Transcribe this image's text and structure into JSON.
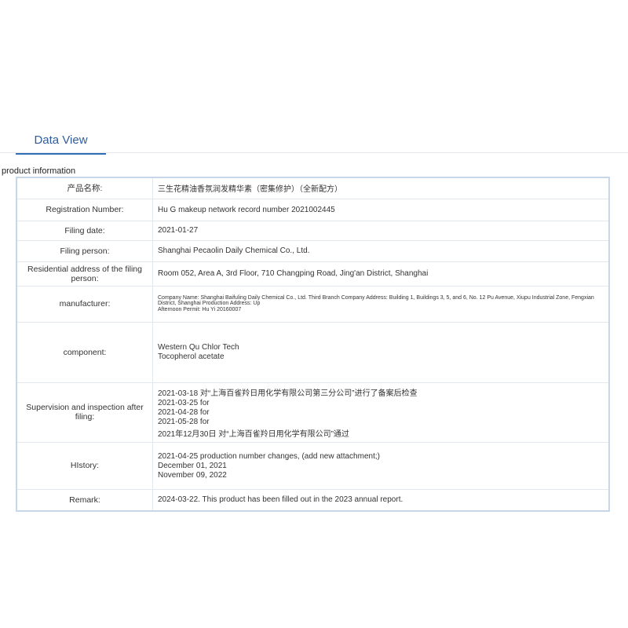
{
  "tab": "Data View",
  "section_title": "product information",
  "rows": [
    {
      "label": "产品名称:",
      "values": [
        "三生花精油香氛润发精华素（密集修护）（全新配方）"
      ]
    },
    {
      "label": "Registration Number:",
      "values": [
        "Hu G makeup network record number 2021002445"
      ]
    },
    {
      "label": "Filing date:",
      "values": [
        "2021-01-27"
      ]
    },
    {
      "label": "Filing person:",
      "values": [
        "Shanghai Pecaolin Daily Chemical Co., Ltd."
      ]
    },
    {
      "label": "Residential address of the filing person:",
      "values": [
        "Room 052, Area A, 3rd Floor, 710 Changping Road, Jing'an District, Shanghai"
      ]
    },
    {
      "label": "manufacturer:",
      "values": [
        "Company Name: Shanghai Baifuling Daily Chemical Co., Ltd. Third Branch Company Address: Building 1, Buildings 3, 5, and 6, No. 12 Pu Avenue, Xiupu Industrial Zone, Fengxian District, Shanghai Production Address: Up",
        "Afternoon Permit: Hu Yi 20160007"
      ]
    },
    {
      "label": "component:",
      "values": [
        "Western Qu Chlor Tech",
        "Tocopherol acetate"
      ]
    },
    {
      "label": "Supervision and inspection after filing:",
      "values": [
        "2021-03-18 对“上海百雀羚日用化学有限公司第三分公司”进行了备案后检查",
        "2021-03-25 for",
        "2021-04-28 for",
        "2021-05-28 for",
        "2021年12月30日 对“上海百雀羚日用化学有限公司”通过"
      ]
    },
    {
      "label": "HIstory:",
      "values": [
        "2021-04-25 production number changes, (add new attachment;)",
        "December 01, 2021",
        "November 09, 2022"
      ]
    },
    {
      "label": "Remark:",
      "values": [
        "2024-03-22. This product has been filled out in the 2023 annual report."
      ]
    }
  ]
}
